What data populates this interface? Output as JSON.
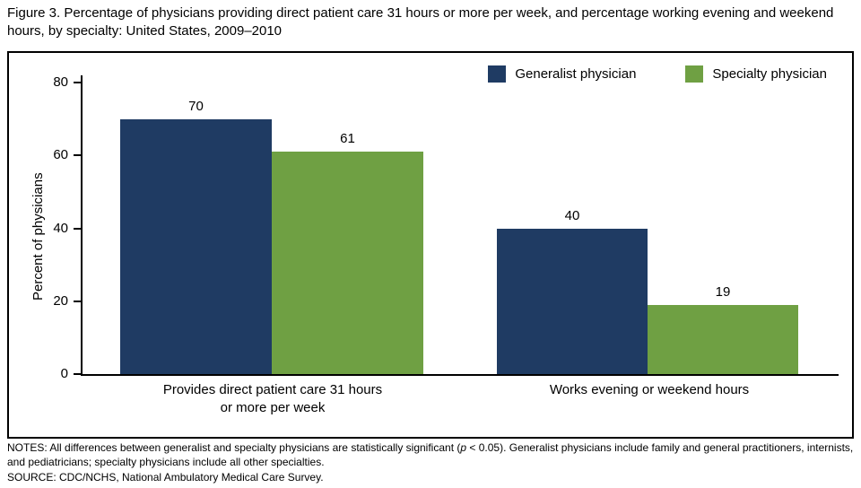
{
  "title": "Figure 3. Percentage of physicians providing direct patient care 31 hours or more per week, and percentage working evening and weekend hours, by specialty: United States, 2009–2010",
  "chart_data": {
    "type": "bar",
    "categories": [
      "Provides direct patient care 31 hours or more per week",
      "Works evening or weekend hours"
    ],
    "series": [
      {
        "name": "Generalist physician",
        "color": "#1f3b63",
        "values": [
          70,
          40
        ]
      },
      {
        "name": "Specialty physician",
        "color": "#6fa043",
        "values": [
          61,
          19
        ]
      }
    ],
    "title": "",
    "xlabel": "",
    "ylabel": "Percent of physicians",
    "yticks": [
      0,
      20,
      40,
      60,
      80
    ],
    "ylim": [
      0,
      80
    ],
    "grid": false,
    "legend_position": "top-right",
    "bar_value_labels": [
      [
        70,
        40
      ],
      [
        61,
        19
      ]
    ]
  },
  "xlabels": {
    "group1_line1": "Provides direct patient care 31 hours",
    "group1_line2": "or more per week",
    "group2": "Works evening or weekend hours"
  },
  "notes": {
    "prefix": "NOTES: All differences between generalist and specialty physicians are statistically significant (",
    "italic": "p",
    "suffix": " < 0.05). Generalist physicians include family and general practitioners, internists, and pediatricians; specialty physicians include all other specialties.",
    "source": "SOURCE: CDC/NCHS, National Ambulatory Medical Care Survey."
  }
}
